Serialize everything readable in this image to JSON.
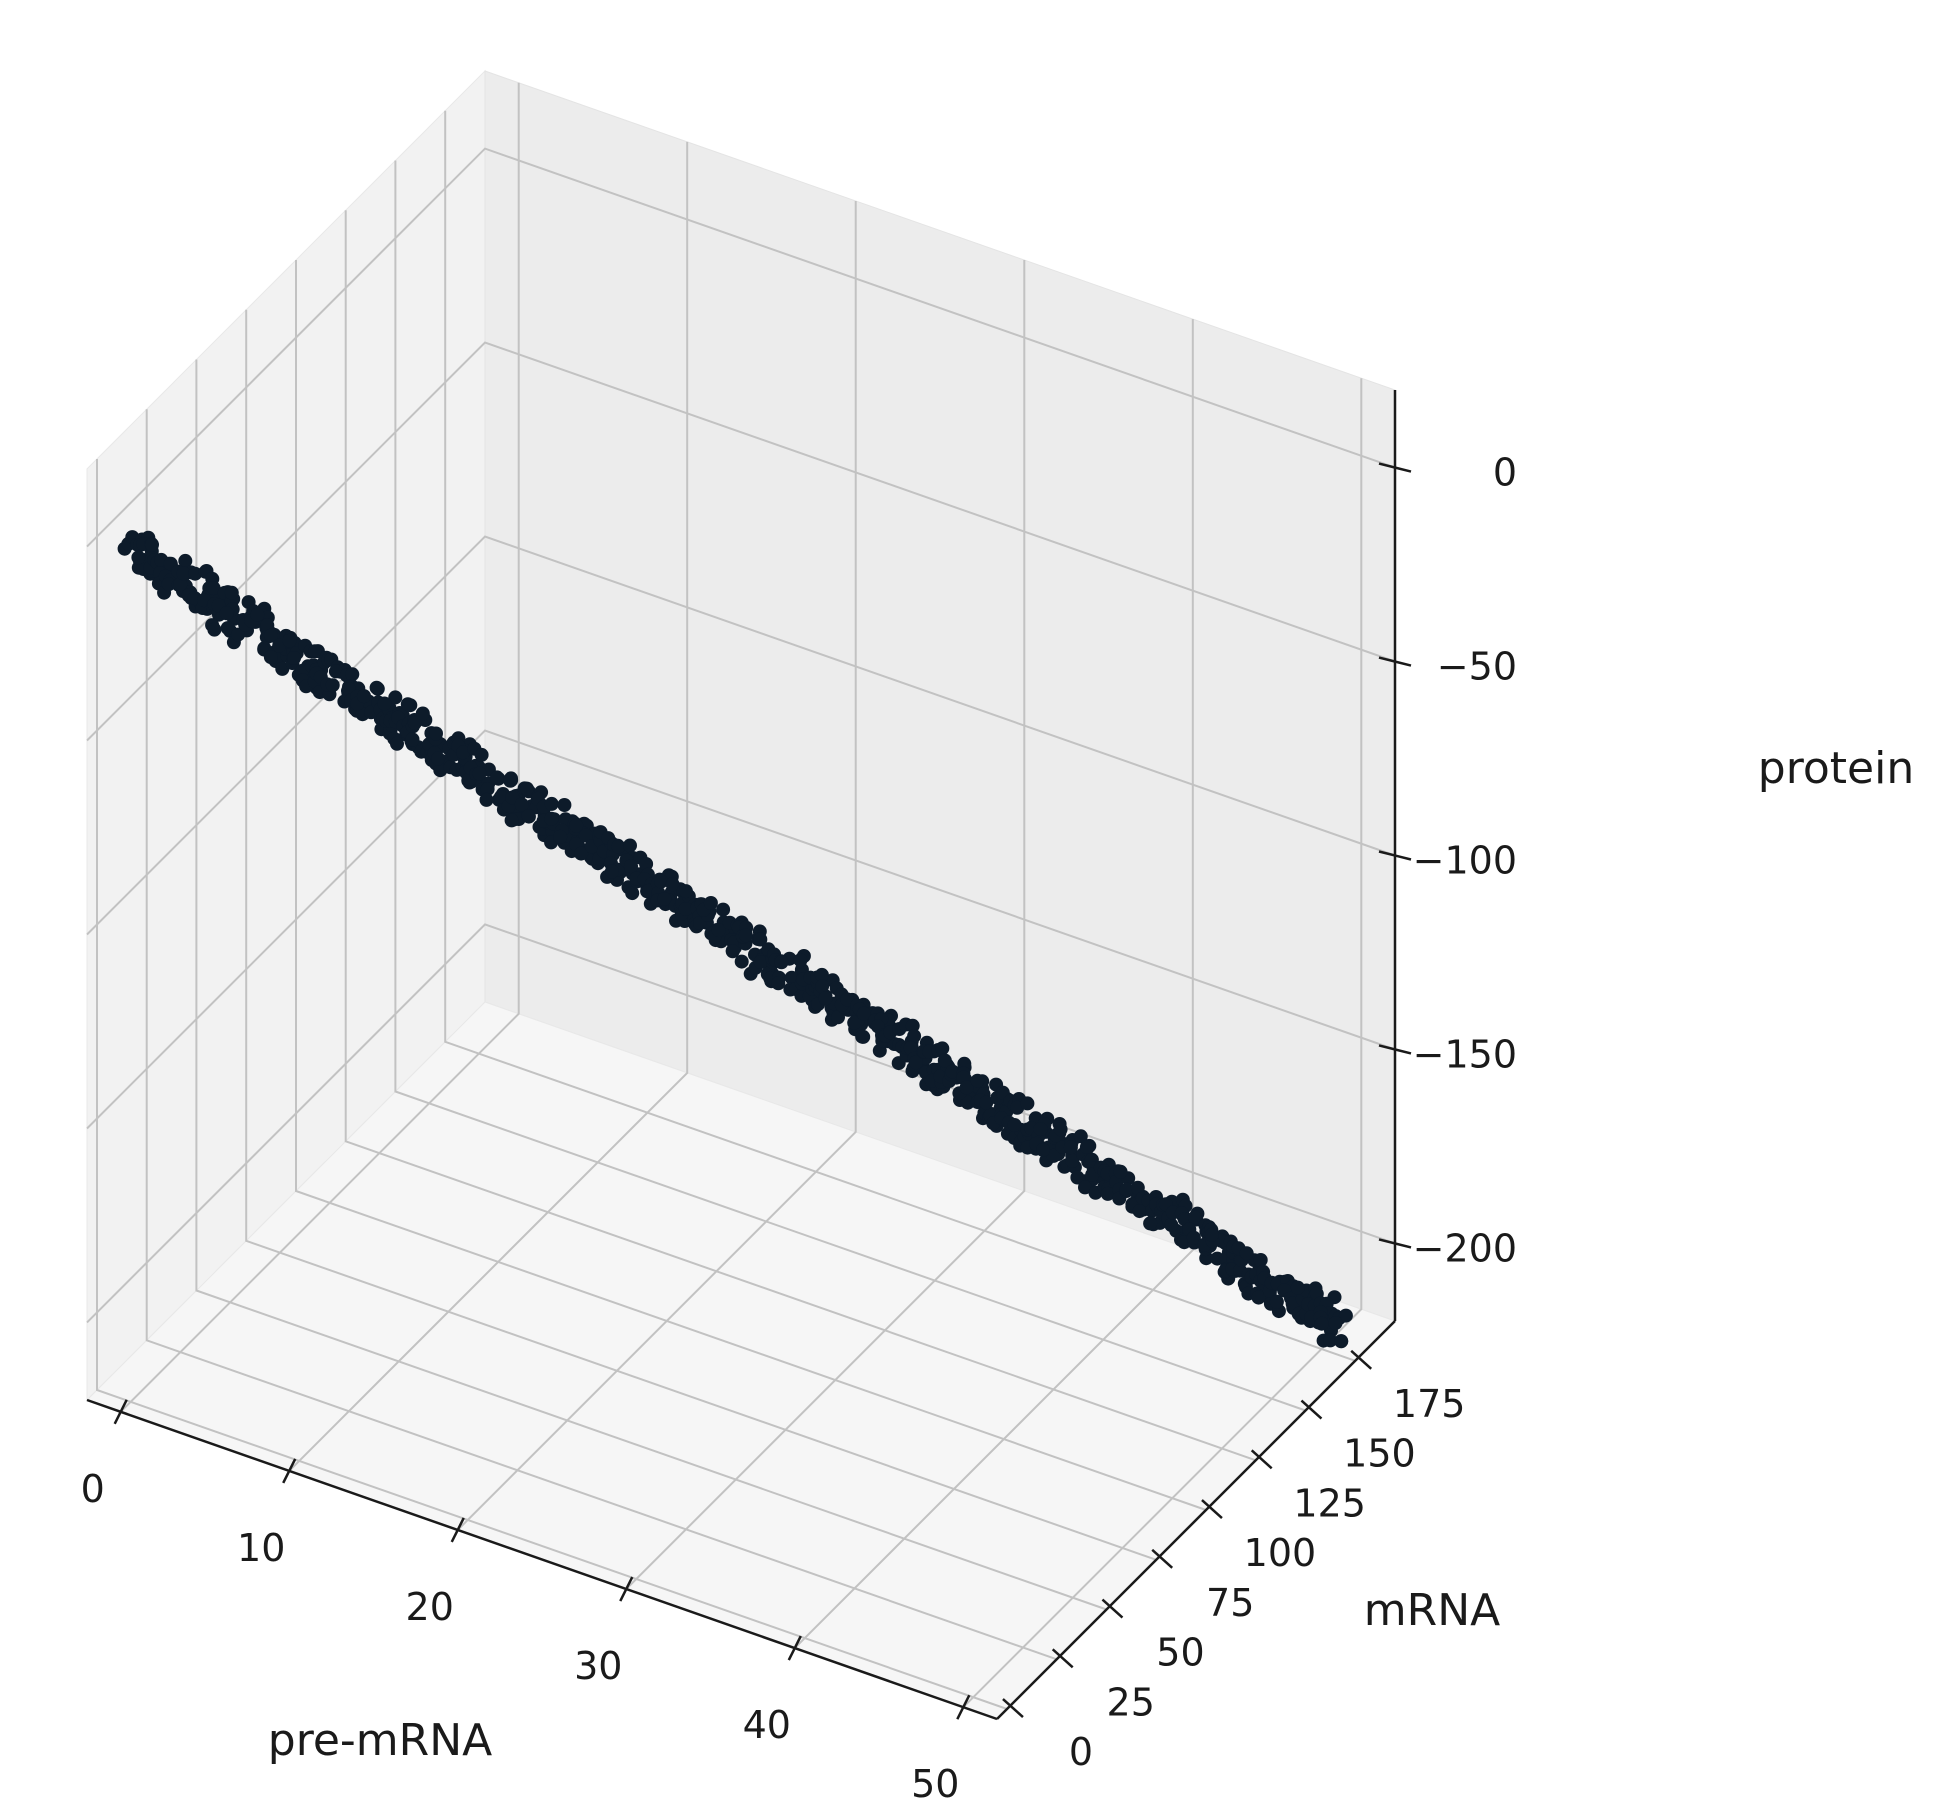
{
  "chart_data": {
    "type": "scatter",
    "projection": "3d",
    "xlabel": "pre-mRNA",
    "ylabel": "mRNA",
    "zlabel": "protein",
    "xlim": [
      -2,
      52
    ],
    "ylim": [
      -5,
      195
    ],
    "zlim": [
      -220,
      20
    ],
    "xticks": [
      0,
      10,
      20,
      30,
      40,
      50
    ],
    "xtick_labels": [
      "0",
      "10",
      "20",
      "30",
      "40",
      "50"
    ],
    "yticks": [
      0,
      25,
      50,
      75,
      100,
      125,
      150,
      175
    ],
    "ytick_labels": [
      "0",
      "25",
      "50",
      "75",
      "100",
      "125",
      "150",
      "175"
    ],
    "zticks": [
      0,
      -50,
      -100,
      -150,
      -200
    ],
    "ztick_labels": [
      "0",
      "−50",
      "−100",
      "−150",
      "−200"
    ],
    "grid": true,
    "marker_color": "#0d1b2a",
    "series": [
      {
        "x": [
          0,
          50
        ],
        "y": [
          0,
          185
        ],
        "z": [
          0,
          -220
        ],
        "spread": 1.2
      }
    ]
  }
}
